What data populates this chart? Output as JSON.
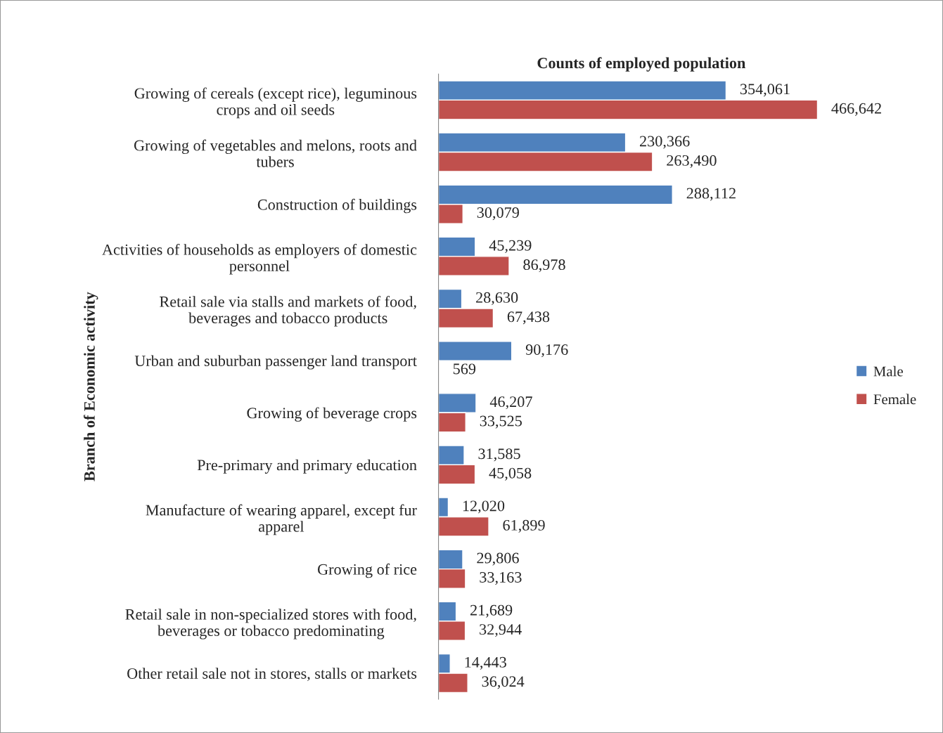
{
  "chart_data": {
    "type": "bar",
    "orientation": "horizontal",
    "title": "Counts of employed population",
    "ylabel": "Branch of Economic activity",
    "categories": [
      "Growing of cereals (except rice), leguminous\ncrops and oil seeds",
      "Growing of vegetables and melons, roots and\ntubers",
      "Construction of buildings",
      "Activities of households as employers of domestic\npersonnel",
      "Retail sale via stalls and markets of food,\nbeverages and tobacco products",
      "Urban and suburban passenger land transport",
      "Growing of beverage crops",
      "Pre-primary and primary education",
      "Manufacture of wearing apparel, except fur\napparel",
      "Growing of rice",
      "Retail sale in non-specialized stores with food,\nbeverages or tobacco predominating",
      "Other retail sale not in stores, stalls or markets"
    ],
    "series": [
      {
        "name": "Male",
        "color": "#4f81bd",
        "values": [
          354061,
          230366,
          288112,
          45239,
          28630,
          90176,
          46207,
          31585,
          12020,
          29806,
          21689,
          14443
        ],
        "value_labels": [
          "354,061",
          "230,366",
          "288,112",
          "45,239",
          "28,630",
          "90,176",
          "46,207",
          "31,585",
          "12,020",
          "29,806",
          "21,689",
          "14,443"
        ]
      },
      {
        "name": "Female",
        "color": "#c0504d",
        "values": [
          466642,
          263490,
          30079,
          86978,
          67438,
          569,
          33525,
          45058,
          61899,
          33163,
          32944,
          36024
        ],
        "value_labels": [
          "466,642",
          "263,490",
          "30,079",
          "86,978",
          "67,438",
          "569",
          "33,525",
          "45,058",
          "61,899",
          "33,163",
          "32,944",
          "36,024"
        ]
      }
    ],
    "tick_labels": "y",
    "legend": "right",
    "grid": false
  }
}
